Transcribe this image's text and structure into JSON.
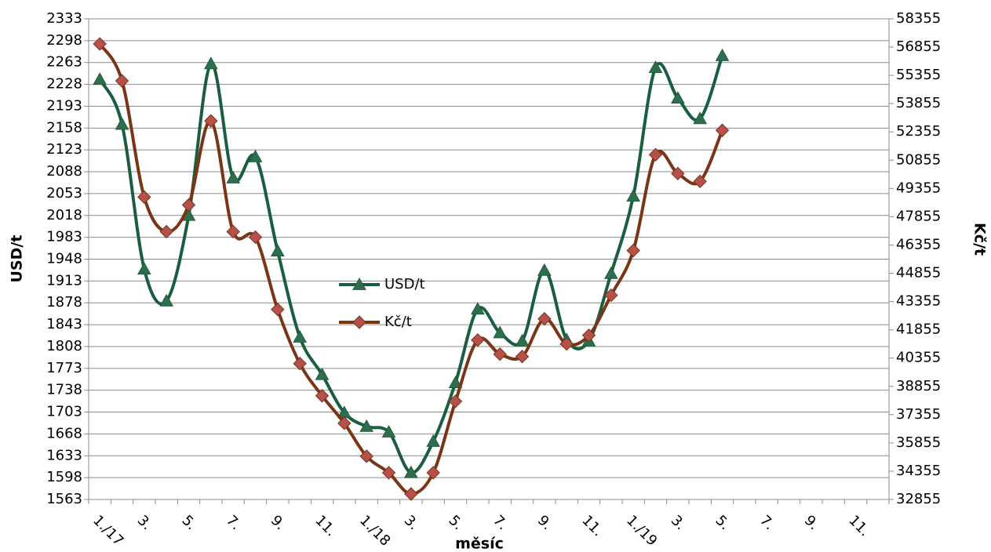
{
  "chart_data": {
    "type": "line",
    "y_label": "USD/t",
    "y2_label": "Kč/t",
    "x_label": "měsíc",
    "categories": [
      "1./17",
      null,
      "3.",
      null,
      "5.",
      null,
      "7.",
      null,
      "9.",
      null,
      "11.",
      null,
      "1./18",
      null,
      "3.",
      null,
      "5.",
      null,
      "7.",
      null,
      "9.",
      null,
      "11.",
      null,
      "1./19",
      null,
      "3.",
      null,
      "5.",
      null,
      "7.",
      null,
      "9.",
      null,
      "11.",
      null
    ],
    "series": [
      {
        "name": "USD/t",
        "color": "#1b5e3f",
        "marker": "triangle",
        "marker_color": "#2e6e4c",
        "values": [
          2236,
          2164,
          1932,
          1881,
          2018,
          2261,
          2078,
          2112,
          1961,
          1823,
          1763,
          1702,
          1680,
          1671,
          1606,
          1656,
          1750,
          1868,
          1830,
          1817,
          1930,
          1819,
          1817,
          1925,
          2049,
          2255,
          2206,
          2173,
          2274,
          null,
          null,
          null,
          null,
          null,
          null,
          null
        ]
      },
      {
        "name": "Kč/t",
        "color": "#7a3516",
        "marker": "diamond",
        "marker_color": "#b5504a",
        "axis": "y2",
        "values": [
          57022,
          55063,
          48897,
          47063,
          48480,
          52938,
          47063,
          46772,
          42938,
          40063,
          38355,
          36897,
          35147,
          34272,
          33147,
          34272,
          38063,
          41313,
          40563,
          40438,
          42438,
          41105,
          41563,
          43688,
          46063,
          51147,
          50147,
          49730,
          52438,
          null,
          null,
          null,
          null,
          null,
          null,
          null
        ]
      }
    ],
    "ylim": [
      1563,
      2333
    ],
    "yticks": [
      1563,
      1598,
      1633,
      1668,
      1703,
      1738,
      1773,
      1808,
      1843,
      1878,
      1913,
      1948,
      1983,
      2018,
      2053,
      2088,
      2123,
      2158,
      2193,
      2228,
      2263,
      2298,
      2333
    ],
    "y2lim": [
      32855,
      58355
    ],
    "y2ticks": [
      32855,
      34355,
      35855,
      37355,
      38855,
      40355,
      41855,
      43355,
      44855,
      46355,
      47855,
      49355,
      50855,
      52355,
      53855,
      55355,
      56855,
      58355
    ],
    "grid": true,
    "legend": "center"
  }
}
